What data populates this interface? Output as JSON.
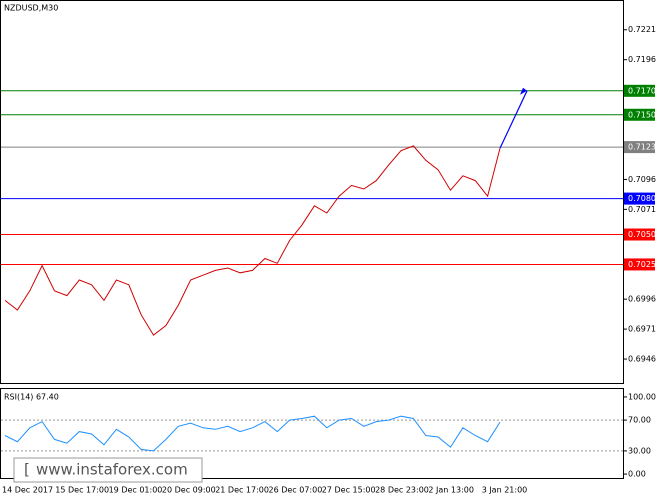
{
  "chart_data": [
    {
      "type": "line",
      "title": "NZDUSD,M30",
      "color": "#d00000",
      "values": [
        0.6995,
        0.6987,
        0.7003,
        0.7024,
        0.7003,
        0.6999,
        0.7012,
        0.7008,
        0.6995,
        0.7012,
        0.7008,
        0.6983,
        0.6966,
        0.6974,
        0.6991,
        0.7012,
        0.7016,
        0.702,
        0.7022,
        0.7018,
        0.702,
        0.703,
        0.7026,
        0.7045,
        0.7058,
        0.7074,
        0.7068,
        0.7082,
        0.7091,
        0.7088,
        0.7095,
        0.7108,
        0.712,
        0.7124,
        0.7112,
        0.7104,
        0.7087,
        0.7099,
        0.7095,
        0.7082,
        0.7122
      ],
      "ylim": [
        0.6926,
        0.7245
      ],
      "yticks": [
        0.7221,
        0.7196,
        0.7096,
        0.7071,
        0.6996,
        0.6971,
        0.6946
      ],
      "levels": [
        {
          "value": {
            "value": 0.717,
            "label": "0.7170"
          },
          "color": "#008000"
        },
        {
          "value": {
            "value": 0.715,
            "label": "0.7150"
          },
          "color": "#008000"
        },
        {
          "value": 0.7123,
          "color": "#808080"
        },
        {
          "value": {
            "value": 0.708,
            "label": "0.7080"
          },
          "color": "#0000ff"
        },
        {
          "value": {
            "value": 0.705,
            "label": "0.7050"
          },
          "color": "#ff0000"
        },
        {
          "value": 0.7025,
          "color": "#ff0000"
        }
      ],
      "time_labels": [
        "14 Dec 2017",
        "15 Dec 17:00",
        "19 Dec 01:00",
        "20 Dec 09:00",
        "21 Dec 17:00",
        "26 Dec 07:00",
        "27 Dec 15:00",
        "28 Dec 23:00",
        "2 Jan 13:00",
        "3 Jan 21:00"
      ],
      "watermark": "www.instaforex.com"
    },
    {
      "type": "line",
      "title": "RSI(14) 67.40",
      "color": "#1e90ff",
      "values": [
        50,
        42,
        60,
        68,
        45,
        40,
        55,
        52,
        38,
        58,
        48,
        32,
        30,
        45,
        62,
        66,
        60,
        58,
        62,
        55,
        60,
        68,
        55,
        70,
        72,
        75,
        60,
        70,
        72,
        62,
        68,
        70,
        75,
        72,
        50,
        48,
        35,
        60,
        50,
        42,
        67.4
      ],
      "ylim": [
        -5.1,
        110.3
      ],
      "yticks": [
        {
          "value": 100,
          "label": "100.00"
        },
        {
          "value": 70,
          "label": "70.00"
        },
        {
          "value": 30,
          "label": "30.00"
        },
        {
          "value": 0,
          "label": "0.00"
        }
      ],
      "dotted_levels": [
        70,
        30
      ]
    }
  ]
}
